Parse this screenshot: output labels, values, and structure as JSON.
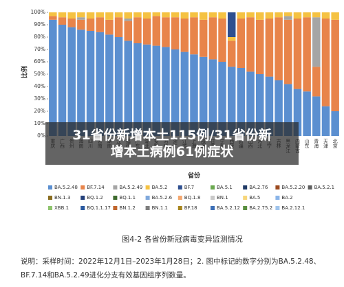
{
  "chart_data": {
    "type": "stacked_bar",
    "title": "31省份新增本土115例/31省份新增本土病例61例症状",
    "caption": "图4-2 各省份新冠病毒变异监测情况",
    "note": [
      "说明：采样时间：2022年12月1日–2023年1月28日；2. 图中标记的数字分别为BA.5.2.48、",
      "BF.7.14和BA.5.2.49进化分支有效基因组序列数量。"
    ],
    "x_label": "省份",
    "y_label": "比例",
    "categories": [
      "重庆",
      "广西",
      "贵州",
      "海南",
      "四川",
      "云南",
      "湖南",
      "江西",
      "福建",
      "广东",
      "湖北",
      "安徽",
      "河南",
      "浙江",
      "江苏",
      "上海",
      "陕西",
      "甘肃",
      "宁夏",
      "西藏",
      "新疆",
      "山西",
      "河北",
      "辽宁",
      "吉林",
      "黑龙江",
      "内蒙古",
      "山东",
      "青海",
      "天津",
      "北京"
    ],
    "ylim": [
      0,
      100
    ],
    "yticks": [
      {
        "value": 0,
        "label": "0%"
      },
      {
        "value": 10,
        "label": "10%"
      },
      {
        "value": 20,
        "label": "20%"
      },
      {
        "value": 30,
        "label": "30%"
      },
      {
        "value": 40,
        "label": "40%"
      },
      {
        "value": 50,
        "label": "50%"
      },
      {
        "value": 60,
        "label": "60%"
      },
      {
        "value": 70,
        "label": "70%"
      },
      {
        "value": 80,
        "label": "80%"
      },
      {
        "value": 90,
        "label": "90%"
      },
      {
        "value": 100,
        "label": "100%"
      }
    ],
    "series": [
      {
        "name": "BA.5.2.48",
        "color": "#5b8fd0",
        "values": [
          94,
          90,
          88,
          86,
          85,
          84,
          82,
          80,
          77,
          75,
          74,
          73,
          72,
          70,
          68,
          66,
          64,
          62,
          60,
          56,
          55,
          52,
          50,
          48,
          45,
          42,
          38,
          36,
          32,
          24,
          20
        ]
      },
      {
        "name": "BF.7.14",
        "color": "#e8844a",
        "values": [
          3,
          6,
          7,
          8,
          10,
          12,
          12,
          16,
          16,
          21,
          21,
          24,
          24,
          26,
          27,
          30,
          30,
          34,
          35,
          21,
          40,
          44,
          44,
          47,
          51,
          52,
          57,
          60,
          24,
          71,
          74
        ]
      },
      {
        "name": "BA.5.2.49",
        "color": "#a5a5a5",
        "values": [
          0,
          0,
          0,
          2,
          0,
          0,
          0,
          0,
          2,
          0,
          0,
          0,
          0,
          0,
          0,
          0,
          0,
          0,
          0,
          0,
          0,
          0,
          0,
          0,
          0,
          3,
          0,
          0,
          40,
          0,
          0
        ]
      },
      {
        "name": "BA.5.2",
        "color": "#f5c242",
        "values": [
          3,
          4,
          5,
          4,
          5,
          4,
          6,
          4,
          5,
          4,
          5,
          3,
          4,
          4,
          5,
          4,
          6,
          4,
          5,
          3,
          5,
          4,
          6,
          5,
          4,
          3,
          5,
          4,
          4,
          5,
          6
        ]
      },
      {
        "name": "BF.7",
        "color": "#2e4f8f",
        "values": [
          0,
          0,
          0,
          0,
          0,
          0,
          0,
          0,
          0,
          0,
          0,
          0,
          0,
          0,
          0,
          0,
          0,
          0,
          0,
          20,
          0,
          0,
          0,
          0,
          0,
          0,
          0,
          0,
          0,
          0,
          0
        ]
      },
      {
        "name": "BA.5.1",
        "color": "#6aa84f",
        "values": [
          0,
          0,
          0,
          0,
          0,
          0,
          0,
          0,
          0,
          0,
          0,
          0,
          0,
          0,
          0,
          0,
          0,
          0,
          0,
          0,
          0,
          0,
          0,
          0,
          0,
          0,
          0,
          0,
          0,
          0,
          0
        ]
      },
      {
        "name": "BA.2.76",
        "color": "#203a66",
        "values": [
          0,
          0,
          0,
          0,
          0,
          0,
          0,
          0,
          0,
          0,
          0,
          0,
          0,
          0,
          0,
          0,
          0,
          0,
          0,
          0,
          0,
          0,
          0,
          0,
          0,
          0,
          0,
          0,
          0,
          0,
          0
        ]
      },
      {
        "name": "BA.5.2.20",
        "color": "#9c4a1f",
        "values": [
          0,
          0,
          0,
          0,
          0,
          0,
          0,
          0,
          0,
          0,
          0,
          0,
          0,
          0,
          0,
          0,
          0,
          0,
          0,
          0,
          0,
          0,
          0,
          0,
          0,
          0,
          0,
          0,
          0,
          0,
          0
        ]
      },
      {
        "name": "BA.5.2.1",
        "color": "#5f5f5f",
        "values": [
          0,
          0,
          0,
          0,
          0,
          0,
          0,
          0,
          0,
          0,
          0,
          0,
          0,
          0,
          0,
          0,
          0,
          0,
          0,
          0,
          0,
          0,
          0,
          0,
          0,
          0,
          0,
          0,
          0,
          0,
          0
        ]
      },
      {
        "name": "BN.1.3",
        "color": "#8a6d1f",
        "values": [
          0,
          0,
          0,
          0,
          0,
          0,
          0,
          0,
          0,
          0,
          0,
          0,
          0,
          0,
          0,
          0,
          0,
          0,
          0,
          0,
          0,
          0,
          0,
          0,
          0,
          0,
          0,
          0,
          0,
          0,
          0
        ]
      },
      {
        "name": "BQ.1.2",
        "color": "#23407a",
        "values": [
          0,
          0,
          0,
          0,
          0,
          0,
          0,
          0,
          0,
          0,
          0,
          0,
          0,
          0,
          0,
          0,
          0,
          0,
          0,
          0,
          0,
          0,
          0,
          0,
          0,
          0,
          0,
          0,
          0,
          0,
          0
        ]
      },
      {
        "name": "BQ.1.1",
        "color": "#3e6b2e",
        "values": [
          0,
          0,
          0,
          0,
          0,
          0,
          0,
          0,
          0,
          0,
          0,
          0,
          0,
          0,
          0,
          0,
          0,
          0,
          0,
          0,
          0,
          0,
          0,
          0,
          0,
          0,
          0,
          0,
          0,
          0,
          0
        ]
      },
      {
        "name": "BA.5.2.6",
        "color": "#7fa8dc",
        "values": [
          0,
          0,
          0,
          0,
          0,
          0,
          0,
          0,
          0,
          0,
          0,
          0,
          0,
          0,
          0,
          0,
          0,
          0,
          0,
          0,
          0,
          0,
          0,
          0,
          0,
          0,
          0,
          0,
          0,
          0,
          0
        ]
      },
      {
        "name": "BQ.1.8",
        "color": "#f4a76e",
        "values": [
          0,
          0,
          0,
          0,
          0,
          0,
          0,
          0,
          0,
          0,
          0,
          0,
          0,
          0,
          0,
          0,
          0,
          0,
          0,
          0,
          0,
          0,
          0,
          0,
          0,
          0,
          0,
          0,
          0,
          0,
          0
        ]
      },
      {
        "name": "BN.1",
        "color": "#c8c8c8",
        "values": [
          0,
          0,
          0,
          0,
          0,
          0,
          0,
          0,
          0,
          0,
          0,
          0,
          0,
          0,
          0,
          0,
          0,
          0,
          0,
          0,
          0,
          0,
          0,
          0,
          0,
          0,
          0,
          0,
          0,
          0,
          0
        ]
      },
      {
        "name": "BA.5",
        "color": "#f7d679",
        "values": [
          0,
          0,
          0,
          0,
          0,
          0,
          0,
          0,
          0,
          0,
          0,
          0,
          0,
          0,
          0,
          0,
          0,
          0,
          0,
          0,
          0,
          0,
          0,
          0,
          0,
          0,
          0,
          0,
          0,
          0,
          0
        ]
      },
      {
        "name": "BA.2",
        "color": "#8ab4e8",
        "values": [
          0,
          0,
          0,
          0,
          0,
          0,
          0,
          0,
          0,
          0,
          0,
          0,
          0,
          0,
          0,
          0,
          0,
          0,
          0,
          0,
          0,
          0,
          0,
          0,
          0,
          0,
          0,
          0,
          0,
          0,
          0
        ]
      },
      {
        "name": "XBB.1",
        "color": "#8fc46e",
        "values": [
          0,
          0,
          0,
          0,
          0,
          0,
          0,
          0,
          0,
          0,
          0,
          0,
          0,
          0,
          0,
          0,
          0,
          0,
          0,
          0,
          0,
          0,
          0,
          0,
          0,
          0,
          0,
          0,
          0,
          0,
          0
        ]
      },
      {
        "name": "BQ.1.1.17",
        "color": "#2b5aa0",
        "values": [
          0,
          0,
          0,
          0,
          0,
          0,
          0,
          0,
          0,
          0,
          0,
          0,
          0,
          0,
          0,
          0,
          0,
          0,
          0,
          0,
          0,
          0,
          0,
          0,
          0,
          0,
          0,
          0,
          0,
          0,
          0
        ]
      },
      {
        "name": "BN.1.2",
        "color": "#c0662d",
        "values": [
          0,
          0,
          0,
          0,
          0,
          0,
          0,
          0,
          0,
          0,
          0,
          0,
          0,
          0,
          0,
          0,
          0,
          0,
          0,
          0,
          0,
          0,
          0,
          0,
          0,
          0,
          0,
          0,
          0,
          0,
          0
        ]
      },
      {
        "name": "BN.1.1",
        "color": "#7e7e7e",
        "values": [
          0,
          0,
          0,
          0,
          0,
          0,
          0,
          0,
          0,
          0,
          0,
          0,
          0,
          0,
          0,
          0,
          0,
          0,
          0,
          0,
          0,
          0,
          0,
          0,
          0,
          0,
          0,
          0,
          0,
          0,
          0
        ]
      },
      {
        "name": "BF.18",
        "color": "#a8861f",
        "values": [
          0,
          0,
          0,
          0,
          0,
          0,
          0,
          0,
          0,
          0,
          0,
          0,
          0,
          0,
          0,
          0,
          0,
          0,
          0,
          0,
          0,
          0,
          0,
          0,
          0,
          0,
          0,
          0,
          0,
          0,
          0
        ]
      },
      {
        "name": "BA.5.2.12",
        "color": "#3c6fb6",
        "values": [
          0,
          0,
          0,
          0,
          0,
          0,
          0,
          0,
          0,
          0,
          0,
          0,
          0,
          0,
          0,
          0,
          0,
          0,
          0,
          0,
          0,
          0,
          0,
          0,
          0,
          0,
          0,
          0,
          0,
          0,
          0
        ]
      },
      {
        "name": "BA.2.75.2",
        "color": "#5a9040",
        "values": [
          0,
          0,
          0,
          0,
          0,
          0,
          0,
          0,
          0,
          0,
          0,
          0,
          0,
          0,
          0,
          0,
          0,
          0,
          0,
          0,
          0,
          0,
          0,
          0,
          0,
          0,
          0,
          0,
          0,
          0,
          0
        ]
      },
      {
        "name": "BA.2.12.1",
        "color": "#a0c4ec",
        "values": [
          0,
          0,
          0,
          0,
          0,
          0,
          0,
          0,
          0,
          0,
          0,
          0,
          0,
          0,
          0,
          0,
          0,
          0,
          0,
          0,
          0,
          0,
          0,
          0,
          0,
          0,
          0,
          0,
          0,
          0,
          0
        ]
      }
    ]
  }
}
